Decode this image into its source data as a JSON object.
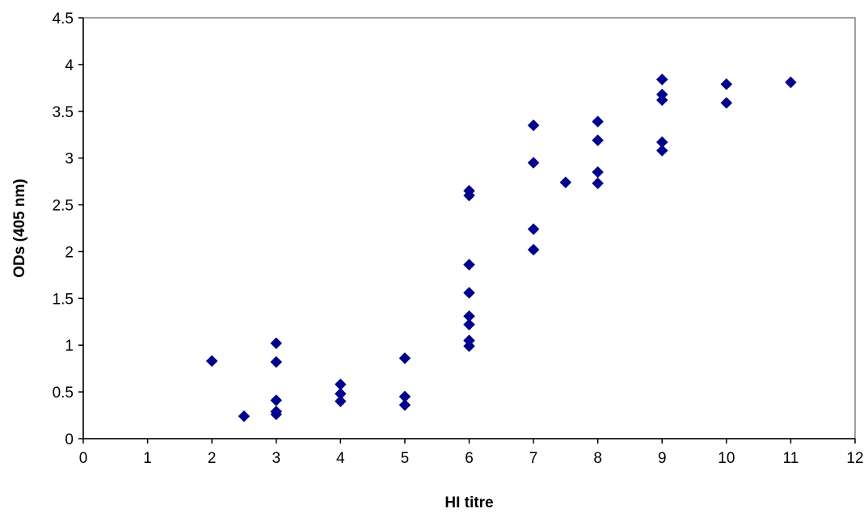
{
  "chart_data": {
    "type": "scatter",
    "title": "",
    "xlabel": "HI titre",
    "ylabel": "ODs (405 nm)",
    "xlim": [
      0,
      12
    ],
    "ylim": [
      0,
      4.5
    ],
    "x_ticks": [
      "0",
      "1",
      "2",
      "3",
      "4",
      "5",
      "6",
      "7",
      "8",
      "9",
      "10",
      "11",
      "12"
    ],
    "y_ticks": [
      "0",
      "0.5",
      "1",
      "1.5",
      "2",
      "2.5",
      "3",
      "3.5",
      "4",
      "4.5"
    ],
    "grid": false,
    "legend": false,
    "marker": "diamond",
    "color": "#00008B",
    "series": [
      {
        "points": [
          {
            "x": 2,
            "y": 0.83
          },
          {
            "x": 2.5,
            "y": 0.24
          },
          {
            "x": 3,
            "y": 1.02
          },
          {
            "x": 3,
            "y": 0.82
          },
          {
            "x": 3,
            "y": 0.41
          },
          {
            "x": 3,
            "y": 0.29
          },
          {
            "x": 3,
            "y": 0.26
          },
          {
            "x": 4,
            "y": 0.58
          },
          {
            "x": 4,
            "y": 0.48
          },
          {
            "x": 4,
            "y": 0.4
          },
          {
            "x": 5,
            "y": 0.86
          },
          {
            "x": 5,
            "y": 0.45
          },
          {
            "x": 5,
            "y": 0.36
          },
          {
            "x": 6,
            "y": 2.65
          },
          {
            "x": 6,
            "y": 2.6
          },
          {
            "x": 6,
            "y": 1.86
          },
          {
            "x": 6,
            "y": 1.56
          },
          {
            "x": 6,
            "y": 1.31
          },
          {
            "x": 6,
            "y": 1.22
          },
          {
            "x": 6,
            "y": 1.05
          },
          {
            "x": 6,
            "y": 0.99
          },
          {
            "x": 7,
            "y": 3.35
          },
          {
            "x": 7,
            "y": 2.95
          },
          {
            "x": 7,
            "y": 2.24
          },
          {
            "x": 7,
            "y": 2.02
          },
          {
            "x": 7.5,
            "y": 2.74
          },
          {
            "x": 8,
            "y": 3.39
          },
          {
            "x": 8,
            "y": 3.19
          },
          {
            "x": 8,
            "y": 2.85
          },
          {
            "x": 8,
            "y": 2.73
          },
          {
            "x": 9,
            "y": 3.84
          },
          {
            "x": 9,
            "y": 3.68
          },
          {
            "x": 9,
            "y": 3.62
          },
          {
            "x": 9,
            "y": 3.17
          },
          {
            "x": 9,
            "y": 3.08
          },
          {
            "x": 10,
            "y": 3.79
          },
          {
            "x": 10,
            "y": 3.59
          },
          {
            "x": 11,
            "y": 3.81
          }
        ]
      }
    ]
  }
}
